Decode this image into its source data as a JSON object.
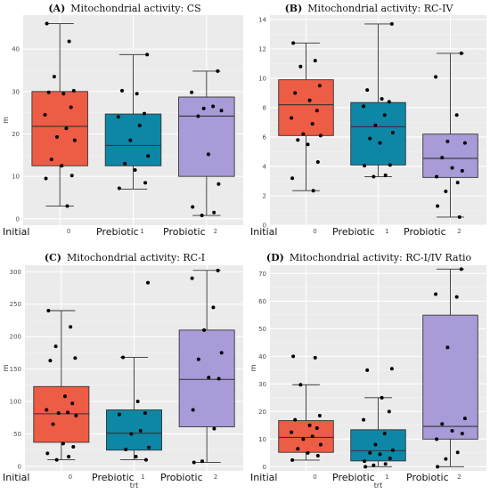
{
  "colors": {
    "panel_bg": "#ebebeb",
    "grid_major": "#ffffff",
    "grid_minor": "#f4f4f4",
    "box_line": "#333333",
    "point": "#000000",
    "group_fills": [
      "#ed5c45",
      "#0e87a6",
      "#a99bd8"
    ]
  },
  "chart_data": [
    {
      "type": "box",
      "panel_label": "(A)",
      "title": "Mitochondrial activity: CS",
      "xlabel": "",
      "ylabel": "m",
      "ylim": [
        -1.5,
        48
      ],
      "yticks": [
        0,
        10,
        20,
        30,
        40
      ],
      "categories": [
        "0",
        "1",
        "2"
      ],
      "group_labels": [
        "Initial",
        "Prebiotic",
        "Probiotic"
      ],
      "boxes": [
        {
          "min": 3,
          "q1": 12.5,
          "median": 21.8,
          "q3": 30,
          "max": 46
        },
        {
          "min": 7,
          "q1": 12.5,
          "median": 17.3,
          "q3": 24.7,
          "max": 38.7
        },
        {
          "min": 0.8,
          "q1": 10,
          "median": 24.2,
          "q3": 28.7,
          "max": 34.8
        }
      ],
      "points": [
        [
          46,
          41.8,
          33.5,
          30.2,
          29.8,
          29.5,
          26.3,
          24.5,
          21.3,
          19.3,
          18.5,
          14,
          12.5,
          10.2,
          9.5,
          3
        ],
        [
          38.7,
          30.2,
          29.5,
          24.8,
          24,
          22,
          18.5,
          14.8,
          13,
          11.5,
          8.5,
          7.2
        ],
        [
          34.8,
          29.8,
          26.5,
          26,
          25.5,
          24.2,
          15.2,
          8.2,
          2.8,
          1.5,
          0.8
        ]
      ]
    },
    {
      "type": "box",
      "panel_label": "(B)",
      "title": "Mitochondrial activity: RC-IV",
      "xlabel": "",
      "ylabel": "",
      "ylim": [
        0,
        14.3
      ],
      "yticks": [
        0,
        2,
        4,
        6,
        8,
        10,
        12,
        14
      ],
      "categories": [
        "0",
        "1",
        "2"
      ],
      "group_labels": [
        "Initial",
        "Prebiotic",
        "Probiotic"
      ],
      "boxes": [
        {
          "min": 2.35,
          "q1": 6.1,
          "median": 8.2,
          "q3": 9.9,
          "max": 12.4
        },
        {
          "min": 3.3,
          "q1": 4.1,
          "median": 6.7,
          "q3": 8.35,
          "max": 13.7
        },
        {
          "min": 0.55,
          "q1": 3.25,
          "median": 4.55,
          "q3": 6.2,
          "max": 11.7
        }
      ],
      "points": [
        [
          12.4,
          11.2,
          10.8,
          9.5,
          9,
          8.5,
          7.8,
          7.3,
          6.9,
          6.2,
          6.1,
          5.8,
          5.5,
          4.3,
          3.2,
          2.35
        ],
        [
          13.7,
          9.2,
          8.6,
          8.4,
          8.1,
          7.5,
          6.8,
          6.3,
          5.9,
          5.6,
          4.1,
          4.05,
          3.4,
          3.3
        ],
        [
          11.7,
          10.1,
          7.5,
          5.7,
          5.6,
          4.6,
          3.9,
          3.7,
          3.3,
          2.9,
          2.3,
          1.3,
          0.55
        ]
      ]
    },
    {
      "type": "box",
      "panel_label": "(C)",
      "title": "Mitochondrial activity: RC-I",
      "xlabel": "trt",
      "ylabel": "m",
      "ylim": [
        -7,
        310
      ],
      "yticks": [
        0,
        50,
        100,
        150,
        200,
        250,
        300
      ],
      "categories": [
        "0",
        "1",
        "2"
      ],
      "group_labels": [
        "Initial",
        "Prebiotic",
        "Probiotic"
      ],
      "boxes": [
        {
          "min": 10,
          "q1": 37,
          "median": 81,
          "q3": 123,
          "max": 240
        },
        {
          "min": 10,
          "q1": 25,
          "median": 51,
          "q3": 87,
          "max": 168
        },
        {
          "min": 6,
          "q1": 61,
          "median": 134,
          "q3": 210,
          "max": 302
        }
      ],
      "points": [
        [
          240,
          215,
          185,
          167,
          163,
          108,
          97,
          87,
          83,
          82,
          78,
          65,
          35,
          30,
          20,
          15,
          10
        ],
        [
          283,
          168,
          100,
          82,
          80,
          55,
          50,
          29,
          26,
          15,
          10
        ],
        [
          302,
          290,
          245,
          210,
          175,
          165,
          137,
          135,
          87,
          58,
          8,
          6
        ]
      ]
    },
    {
      "type": "box",
      "panel_label": "(D)",
      "title": "Mitochondrial activity: RC-I/IV Ratio",
      "xlabel": "trt",
      "ylabel": "m",
      "ylim": [
        -1.5,
        73
      ],
      "yticks": [
        0,
        10,
        20,
        30,
        40,
        50,
        60,
        70
      ],
      "categories": [
        "0",
        "1",
        "2"
      ],
      "group_labels": [
        "Initial",
        "Prebiotic",
        "Probiotic"
      ],
      "boxes": [
        {
          "min": 2.4,
          "q1": 5.2,
          "median": 10.6,
          "q3": 16.7,
          "max": 29.7
        },
        {
          "min": 0,
          "q1": 2.1,
          "median": 5.8,
          "q3": 13.4,
          "max": 25
        },
        {
          "min": 0,
          "q1": 10,
          "median": 14.6,
          "q3": 54.9,
          "max": 71.6
        }
      ],
      "points": [
        [
          40,
          39.5,
          29.7,
          18.5,
          17,
          15,
          14,
          12.5,
          11,
          10,
          8,
          6.5,
          5,
          4,
          2.4
        ],
        [
          35.5,
          35,
          25,
          20,
          17,
          12,
          8,
          6,
          5,
          4.5,
          3,
          2,
          1,
          0.5,
          0
        ],
        [
          71.6,
          62.5,
          61.5,
          43.2,
          17.5,
          15.5,
          13,
          12,
          10,
          5.2,
          2.8,
          0
        ]
      ]
    }
  ]
}
